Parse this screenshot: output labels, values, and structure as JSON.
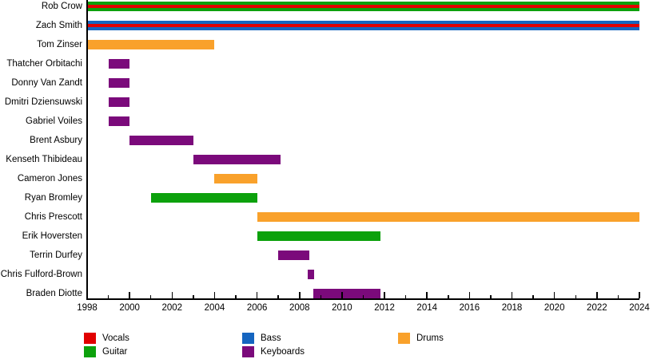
{
  "chart_data": {
    "type": "bar",
    "variant": "horizontal-timeline-gantt",
    "title": "",
    "xlabel": "",
    "ylabel": "",
    "grid": false,
    "x_axis": {
      "min": 1998,
      "max": 2024,
      "major_tick_step": 2,
      "minor_tick_step": 1,
      "major_tick_labels": [
        "1998",
        "2000",
        "2002",
        "2004",
        "2006",
        "2008",
        "2010",
        "2012",
        "2014",
        "2016",
        "2018",
        "2020",
        "2022",
        "2024"
      ]
    },
    "legend_position": "bottom",
    "legend": [
      {
        "label": "Vocals",
        "color": "#e10000",
        "column": 0,
        "row": 0
      },
      {
        "label": "Guitar",
        "color": "#0ca10c",
        "column": 0,
        "row": 1
      },
      {
        "label": "Bass",
        "color": "#1565c0",
        "column": 1,
        "row": 0
      },
      {
        "label": "Keyboards",
        "color": "#7b0a7b",
        "column": 1,
        "row": 1
      },
      {
        "label": "Drums",
        "color": "#f9a12b",
        "column": 2,
        "row": 0
      }
    ],
    "members": [
      {
        "name": "Rob Crow",
        "roles": [
          "Vocals",
          "Guitar"
        ],
        "stripe_order": [
          "Guitar",
          "Vocals",
          "Guitar"
        ],
        "start": 1998,
        "end": 2024
      },
      {
        "name": "Zach Smith",
        "roles": [
          "Vocals",
          "Bass"
        ],
        "stripe_order": [
          "Bass",
          "Vocals",
          "Bass"
        ],
        "start": 1998,
        "end": 2024
      },
      {
        "name": "Tom Zinser",
        "roles": [
          "Drums"
        ],
        "stripe_order": [
          "Drums"
        ],
        "start": 1998,
        "end": 2004
      },
      {
        "name": "Thatcher Orbitachi",
        "roles": [
          "Keyboards"
        ],
        "stripe_order": [
          "Keyboards"
        ],
        "start": 1999,
        "end": 2000
      },
      {
        "name": "Donny Van Zandt",
        "roles": [
          "Keyboards"
        ],
        "stripe_order": [
          "Keyboards"
        ],
        "start": 1999,
        "end": 2000
      },
      {
        "name": "Dmitri Dziensuwski",
        "roles": [
          "Keyboards"
        ],
        "stripe_order": [
          "Keyboards"
        ],
        "start": 1999,
        "end": 2000
      },
      {
        "name": "Gabriel Voiles",
        "roles": [
          "Keyboards"
        ],
        "stripe_order": [
          "Keyboards"
        ],
        "start": 1999,
        "end": 2000
      },
      {
        "name": "Brent Asbury",
        "roles": [
          "Keyboards"
        ],
        "stripe_order": [
          "Keyboards"
        ],
        "start": 2000,
        "end": 2003
      },
      {
        "name": "Kenseth Thibideau",
        "roles": [
          "Keyboards"
        ],
        "stripe_order": [
          "Keyboards"
        ],
        "start": 2003,
        "end": 2007.1
      },
      {
        "name": "Cameron Jones",
        "roles": [
          "Drums"
        ],
        "stripe_order": [
          "Drums"
        ],
        "start": 2004,
        "end": 2006
      },
      {
        "name": "Ryan Bromley",
        "roles": [
          "Guitar"
        ],
        "stripe_order": [
          "Guitar"
        ],
        "start": 2001,
        "end": 2006
      },
      {
        "name": "Chris Prescott",
        "roles": [
          "Drums"
        ],
        "stripe_order": [
          "Drums"
        ],
        "start": 2006,
        "end": 2024
      },
      {
        "name": "Erik Hoversten",
        "roles": [
          "Guitar"
        ],
        "stripe_order": [
          "Guitar"
        ],
        "start": 2006,
        "end": 2011.8
      },
      {
        "name": "Terrin Durfey",
        "roles": [
          "Keyboards"
        ],
        "stripe_order": [
          "Keyboards"
        ],
        "start": 2007,
        "end": 2008.45
      },
      {
        "name": "Chris Fulford-Brown",
        "roles": [
          "Keyboards"
        ],
        "stripe_order": [
          "Keyboards"
        ],
        "start": 2008.4,
        "end": 2008.7
      },
      {
        "name": "Braden Diotte",
        "roles": [
          "Keyboards"
        ],
        "stripe_order": [
          "Keyboards"
        ],
        "start": 2008.65,
        "end": 2011.8
      }
    ]
  }
}
